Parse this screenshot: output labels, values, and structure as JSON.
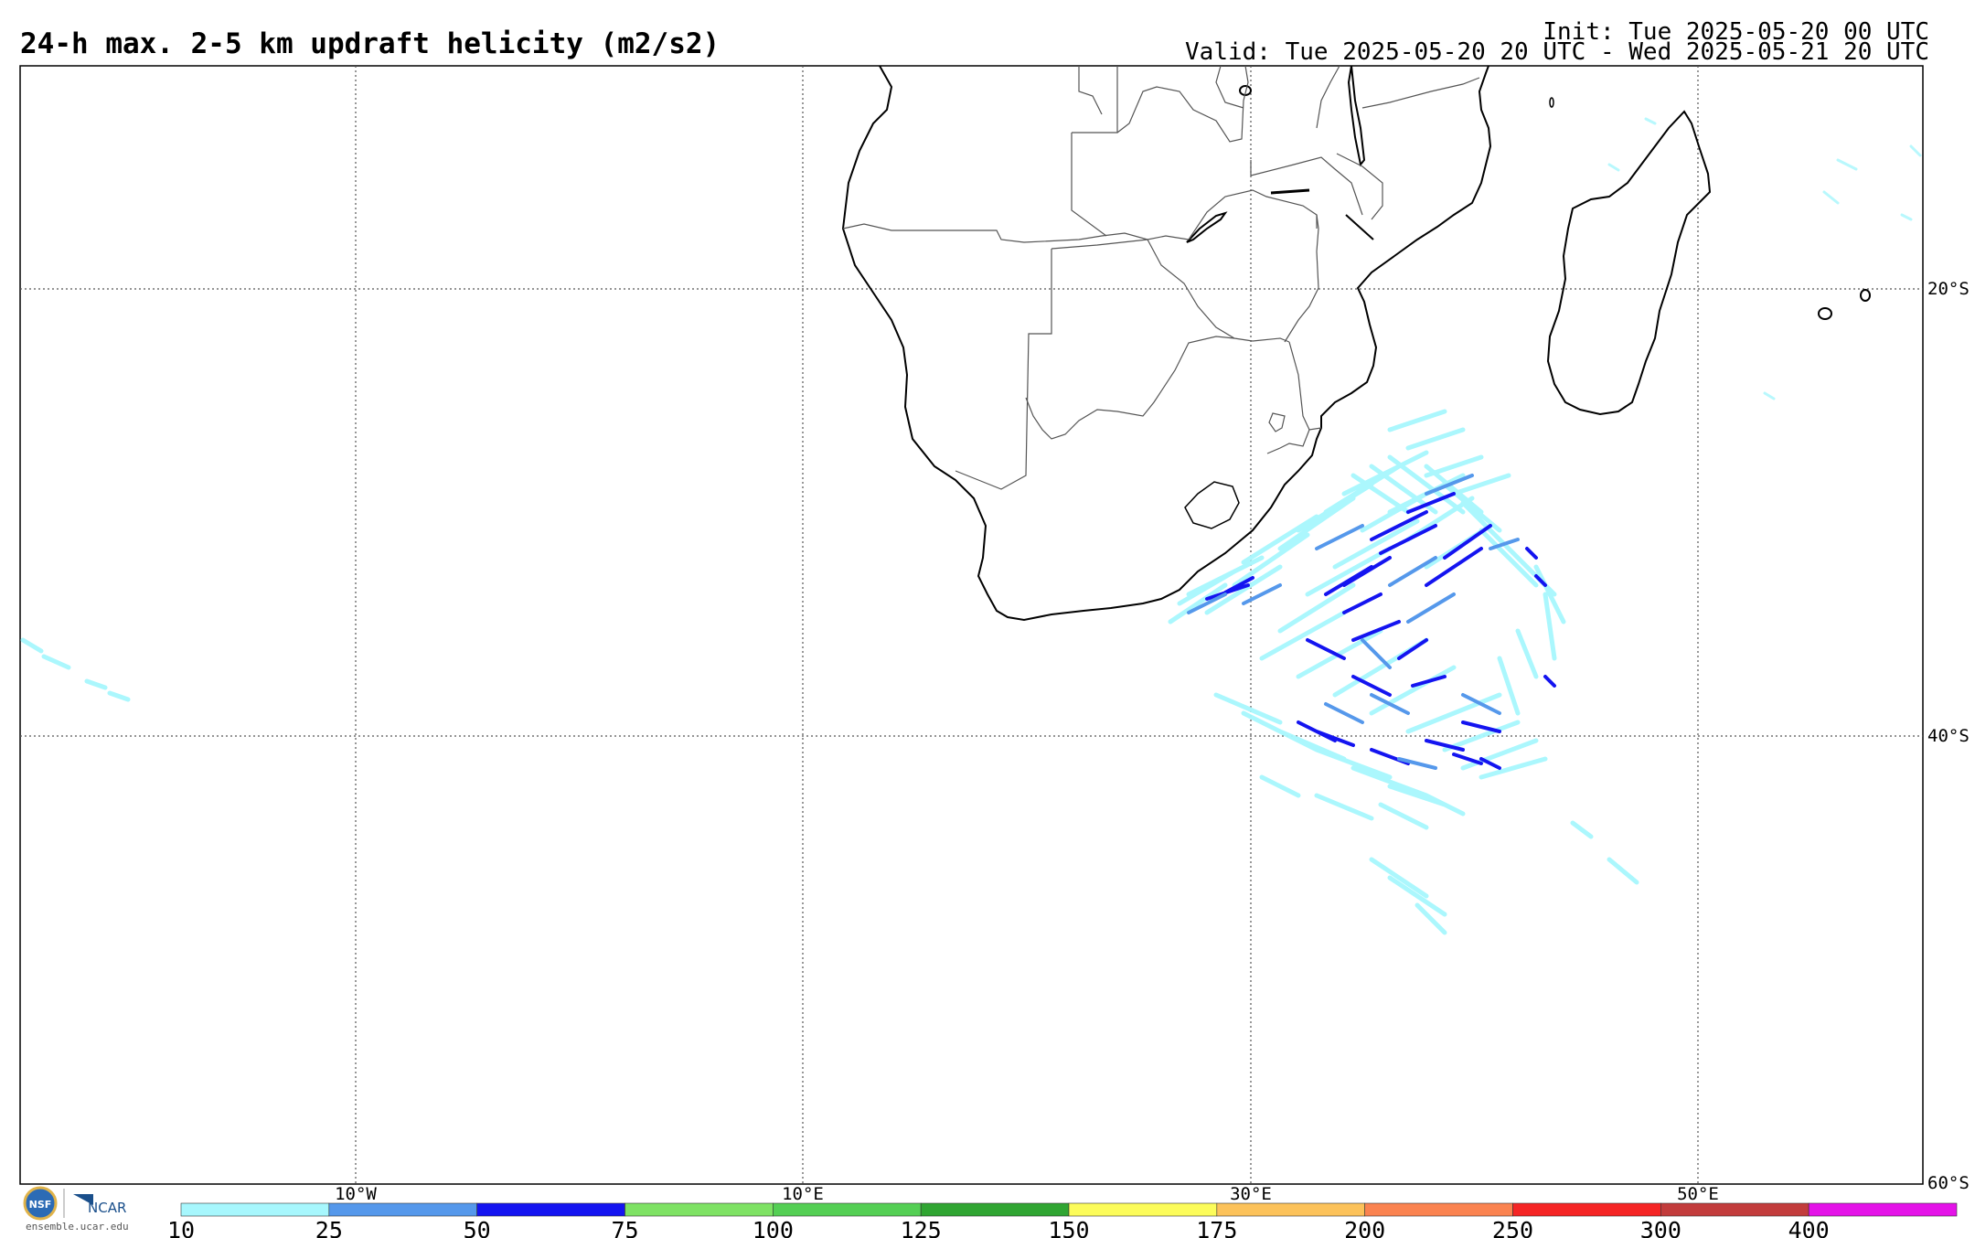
{
  "header": {
    "title": "24-h max. 2-5 km updraft helicity (m2/s2)",
    "init": "Init: Tue 2025-05-20 00 UTC",
    "valid": "Valid: Tue 2025-05-20 20 UTC - Wed 2025-05-21 20 UTC"
  },
  "map": {
    "lon_labels": [
      "10°W",
      "10°E",
      "30°E",
      "50°E"
    ],
    "lat_labels": [
      "20°S",
      "40°S",
      "60°S"
    ],
    "grid": "dotted"
  },
  "colorbar": {
    "ticks": [
      "10",
      "25",
      "50",
      "75",
      "100",
      "125",
      "150",
      "175",
      "200",
      "250",
      "300",
      "400"
    ],
    "colors": [
      "#a7f7fd",
      "#5598eb",
      "#1414f0",
      "#7ee264",
      "#54cf54",
      "#30a532",
      "#fcfc5a",
      "#fcc25a",
      "#fa8350",
      "#f52525",
      "#c23c3c",
      "#e413e8"
    ]
  },
  "logos": {
    "nsf": "NSF",
    "ncar": "NCAR",
    "url": "ensemble.ucar.edu"
  }
}
